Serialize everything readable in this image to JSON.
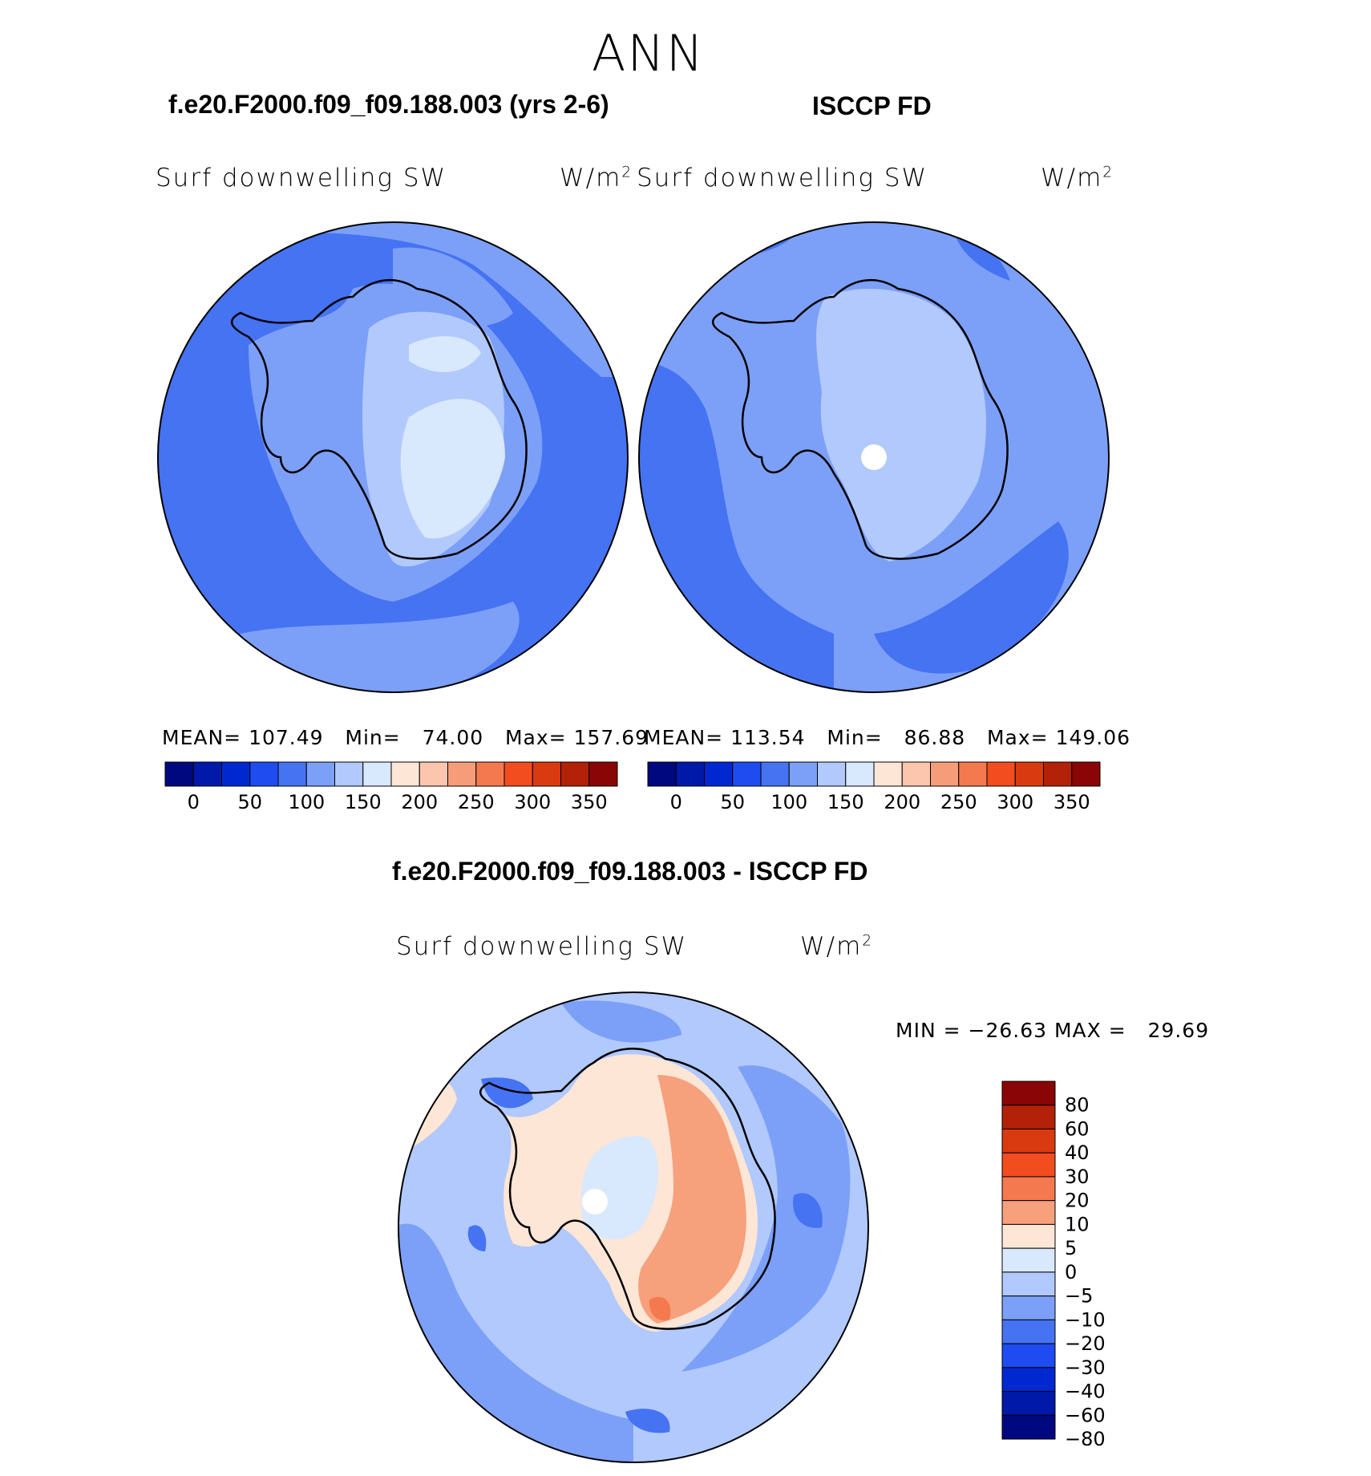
{
  "figure_title": "ANN",
  "panels": {
    "model": {
      "title": "f.e20.F2000.f09_f09.188.003 (yrs 2-6)",
      "variable": "Surf downwelling SW",
      "units_base": "W/m",
      "units_exp": "2",
      "stats": {
        "mean_label": "MEAN=",
        "mean": "107.49",
        "min_label": "Min=",
        "min": "74.00",
        "max_label": "Max=",
        "max": "157.69"
      }
    },
    "obs": {
      "title": "ISCCP FD",
      "variable": "Surf downwelling SW",
      "units_base": "W/m",
      "units_exp": "2",
      "stats": {
        "mean_label": "MEAN=",
        "mean": "113.54",
        "min_label": "Min=",
        "min": "86.88",
        "max_label": "Max=",
        "max": "149.06"
      }
    },
    "diff": {
      "title": "f.e20.F2000.f09_f09.188.003 - ISCCP FD",
      "variable": "Surf downwelling SW",
      "units_base": "W/m",
      "units_exp": "2",
      "minmax": {
        "min_label": "MIN =",
        "min": "−26.63",
        "max_label": "MAX =",
        "max": "29.69"
      }
    }
  },
  "abs_colorbar": {
    "colors": [
      "#00087f",
      "#0019a8",
      "#0028d1",
      "#1e4cf0",
      "#4573f2",
      "#7ca0f8",
      "#b1c9fc",
      "#d8e8fd",
      "#fde6d6",
      "#fbc6ad",
      "#f79c79",
      "#f5794e",
      "#f24d1e",
      "#d93a10",
      "#b32208",
      "#8a0505"
    ],
    "ticks": [
      "0",
      "50",
      "100",
      "150",
      "200",
      "250",
      "300",
      "350"
    ]
  },
  "diff_colorbar": {
    "colors": [
      "#8a0505",
      "#b32208",
      "#d93a10",
      "#f24d1e",
      "#f5794e",
      "#f7a07c",
      "#fde6d6",
      "#d8e8fd",
      "#b1c9fc",
      "#7ca0f8",
      "#4573f2",
      "#1e4cf0",
      "#0028d1",
      "#0019a8",
      "#00087f"
    ],
    "ticks": [
      "80",
      "60",
      "40",
      "30",
      "20",
      "10",
      "5",
      "0",
      "−5",
      "−10",
      "−20",
      "−30",
      "−40",
      "−60",
      "−80"
    ]
  },
  "map_palette": {
    "ocean_dark": "#4573f2",
    "ocean_mid": "#7ca0f8",
    "light": "#b1c9fc",
    "lightest": "#d8e8fd",
    "warm_light": "#fde6d6",
    "warm_mid": "#f7a07c",
    "warm_strong": "#f5794e",
    "pole_hole": "#ffffff"
  }
}
